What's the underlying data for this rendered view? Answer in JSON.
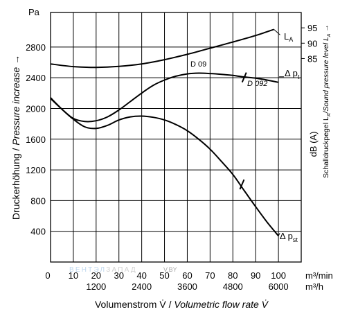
{
  "chart_data": {
    "type": "line",
    "y_unit": "Pa",
    "x_units": [
      "m³/min",
      "m³/h"
    ],
    "xlim": [
      0,
      110
    ],
    "ylim": [
      0,
      3250
    ],
    "x_ticks": [
      0,
      10,
      20,
      30,
      40,
      50,
      60,
      70,
      80,
      90,
      100
    ],
    "x_ticks_h": [
      {
        "x": 20,
        "label": "1200"
      },
      {
        "x": 40,
        "label": "2400"
      },
      {
        "x": 60,
        "label": "3600"
      },
      {
        "x": 80,
        "label": "4800"
      },
      {
        "x": 100,
        "label": "6000"
      }
    ],
    "y_ticks": [
      400,
      800,
      1200,
      1600,
      2000,
      2400,
      2800
    ],
    "xlabel_prefix": "Volumenstrom V̇ / ",
    "xlabel_italic": "Volumetric flow rate V̇",
    "ylabel_prefix": "Druckerhöhung / ",
    "ylabel_italic": "Pressure increase →",
    "right_axis": {
      "ticks": [
        {
          "label": "95",
          "y_pa": 3050
        },
        {
          "label": "90",
          "y_pa": 2850
        },
        {
          "label": "85",
          "y_pa": 2650
        }
      ],
      "unit": "dB (A)",
      "label_prefix": "Schalldruckpegel L",
      "label_sub": "A",
      "label_italic": "/Sound pressure level L",
      "label_sub2": "A",
      "label_suffix": " →"
    },
    "grid": true,
    "watermark": {
      "brand_a": "ВЕНТЭЛ",
      "brand_b": "ЗАПАД",
      "site": "V.BY"
    },
    "series": [
      {
        "name": "LA",
        "label_main": "L",
        "label_sub": "A",
        "x": [
          0,
          10,
          20,
          30,
          40,
          50,
          60,
          70,
          80,
          90,
          98
        ],
        "y": [
          2580,
          2545,
          2535,
          2548,
          2580,
          2635,
          2705,
          2785,
          2865,
          2950,
          3030
        ]
      },
      {
        "name": "D 09",
        "label_main": "D 09",
        "label_sub": "",
        "x": [
          0,
          5,
          10,
          15,
          20,
          25,
          30,
          35,
          40,
          45,
          50,
          55,
          60,
          65,
          70,
          75,
          80,
          85,
          90,
          95,
          100
        ],
        "y": [
          2130,
          1990,
          1870,
          1830,
          1840,
          1890,
          1980,
          2090,
          2200,
          2300,
          2370,
          2420,
          2450,
          2460,
          2455,
          2445,
          2430,
          2410,
          2395,
          2370,
          2340
        ]
      },
      {
        "name": "Δ pt",
        "label_main": "Δ p",
        "label_sub": "t",
        "x": [
          85,
          90,
          95,
          100
        ],
        "y": [
          2405,
          2395,
          2370,
          2340
        ]
      },
      {
        "name": "D 092",
        "label_main": "D 092",
        "label_sub": "",
        "x": [
          0,
          5,
          10,
          15,
          20,
          25,
          30,
          35,
          40,
          45,
          50,
          55,
          60,
          65,
          70,
          75,
          80,
          85,
          90,
          95,
          100
        ],
        "y": [
          2140,
          1990,
          1860,
          1760,
          1740,
          1780,
          1850,
          1890,
          1900,
          1885,
          1850,
          1790,
          1710,
          1600,
          1470,
          1310,
          1140,
          930,
          720,
          520,
          340
        ]
      },
      {
        "name": "Δ pst",
        "label_main": "Δ p",
        "label_sub": "st",
        "x": [
          85,
          90,
          95,
          100
        ],
        "y": [
          930,
          720,
          520,
          340
        ]
      }
    ],
    "markers": [
      {
        "x": 85,
        "y": 2405
      },
      {
        "x": 84,
        "y": 1010
      }
    ]
  }
}
